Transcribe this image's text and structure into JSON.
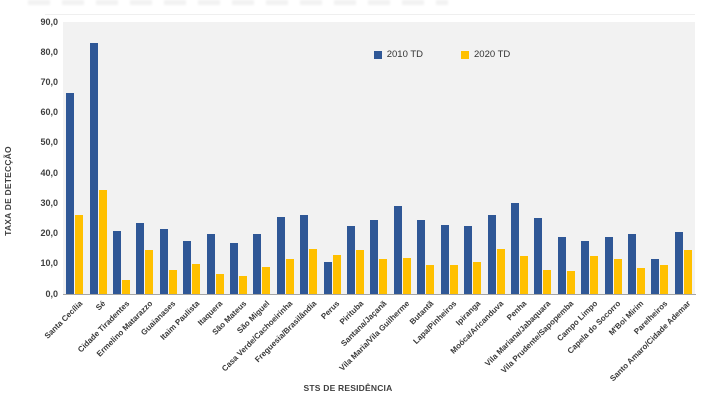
{
  "colors": {
    "series_2010": "#2F5796",
    "series_2020": "#FFC000",
    "plot_background": "#F2F2F2",
    "axis_line": "#A6A6A6",
    "text": "#3F3F3F"
  },
  "chart_data": {
    "type": "bar",
    "title": "",
    "xlabel": "STS DE RESIDÊNCIA",
    "ylabel": "TAXA DE DETECÇÃO",
    "ylim": [
      0,
      90
    ],
    "ytick_step": 10,
    "ytick_labels": [
      "0,0",
      "10,0",
      "20,0",
      "30,0",
      "40,0",
      "50,0",
      "60,0",
      "70,0",
      "80,0",
      "90,0"
    ],
    "grid": false,
    "legend_position": "top-center",
    "categories": [
      "Santa Cecília",
      "Sé",
      "Cidade Tiradentes",
      "Ermelino Matarazzo",
      "Guaianases",
      "Itaim Paulista",
      "Itaquera",
      "São Mateus",
      "São Miguel",
      "Casa Verde/Cachoeirinha",
      "Freguesia/Brasilândia",
      "Perus",
      "Pirituba",
      "Santana/Jaçanã",
      "Vila Maria/Vila Guilherme",
      "Butantã",
      "Lapa/Pinheiros",
      "Ipiranga",
      "Moóca/Aricanduva",
      "Penha",
      "Vila Mariana/Jabaquara",
      "Vila Prudente/Sapopemba",
      "Campo Limpo",
      "Capela do Socorro",
      "M'Boi Mirim",
      "Parelheiros",
      "Santo Amaro/Cidade Ademar"
    ],
    "series": [
      {
        "name": "2010 TD",
        "color": "#2F5796",
        "values": [
          66.5,
          83.0,
          21.0,
          23.5,
          21.5,
          17.5,
          20.0,
          17.0,
          20.0,
          25.5,
          26.0,
          10.5,
          22.5,
          24.5,
          29.0,
          24.5,
          23.0,
          22.5,
          26.0,
          30.0,
          25.0,
          19.0,
          17.5,
          19.0,
          20.0,
          11.5,
          20.5
        ]
      },
      {
        "name": "2020 TD",
        "color": "#FFC000",
        "values": [
          26.0,
          34.5,
          4.5,
          14.5,
          8.0,
          10.0,
          6.5,
          6.0,
          9.0,
          11.5,
          15.0,
          13.0,
          14.5,
          11.5,
          12.0,
          9.5,
          9.5,
          10.5,
          15.0,
          12.5,
          8.0,
          7.5,
          12.5,
          11.5,
          8.5,
          9.5,
          14.5
        ]
      }
    ]
  }
}
